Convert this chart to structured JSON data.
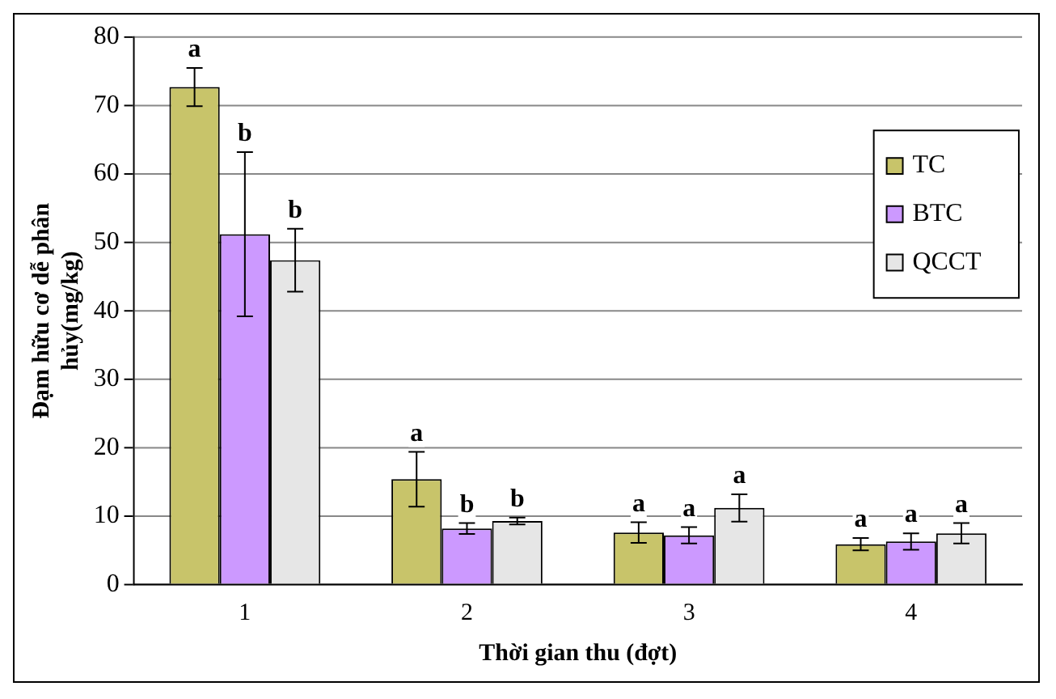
{
  "chart_data": {
    "type": "bar",
    "xlabel": "Thời gian thu (đợt)",
    "ylabel": "Đạm hữu cơ dễ phân hủy(mg/kg)",
    "categories": [
      "1",
      "2",
      "3",
      "4"
    ],
    "series": [
      {
        "name": "TC",
        "color": "#c8c46a",
        "values": [
          72.7,
          15.4,
          7.6,
          5.9
        ],
        "errors": [
          2.8,
          4.0,
          1.5,
          0.9
        ]
      },
      {
        "name": "BTC",
        "color": "#cc99ff",
        "values": [
          51.2,
          8.2,
          7.2,
          6.3
        ],
        "errors": [
          12.0,
          0.8,
          1.2,
          1.2
        ]
      },
      {
        "name": "QCCT",
        "color": "#e6e6e6",
        "values": [
          47.4,
          9.3,
          11.2,
          7.5
        ],
        "errors": [
          4.6,
          0.5,
          2.0,
          1.5
        ]
      }
    ],
    "ylim": [
      0,
      80
    ],
    "yticks": [
      0,
      10,
      20,
      30,
      40,
      50,
      60,
      70,
      80
    ],
    "grid": "y",
    "legend": "top right",
    "annotations": [
      "a",
      "b",
      "b",
      "a",
      "b",
      "b",
      "a",
      "a",
      "a",
      "a",
      "a",
      "a"
    ]
  }
}
